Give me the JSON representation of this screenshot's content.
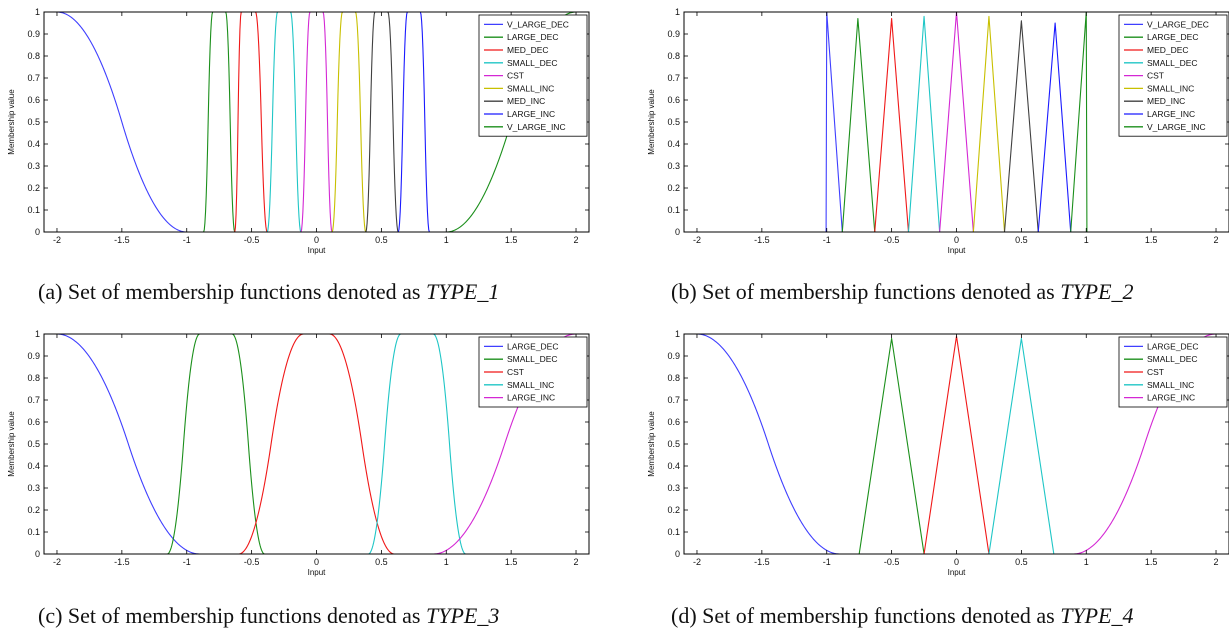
{
  "chart_data": [
    {
      "id": "TYPE_1",
      "type": "line",
      "xlabel": "Input",
      "ylabel": "Membership value",
      "xlim": [
        -2.1,
        2.1
      ],
      "ylim": [
        0,
        1
      ],
      "x_ticks": [
        "-2",
        "-1.5",
        "-1",
        "-0.5",
        "0",
        "0.5",
        "1",
        "1.5",
        "2"
      ],
      "y_ticks": [
        "0",
        "0.1",
        "0.2",
        "0.3",
        "0.4",
        "0.5",
        "0.6",
        "0.7",
        "0.8",
        "0.9",
        "1"
      ],
      "legend_position": "top-right",
      "grid": false,
      "series": [
        {
          "name": "V_LARGE_DEC",
          "color": "#3f3fff",
          "shape": "zmf",
          "params": [
            -2.0,
            -1.0
          ]
        },
        {
          "name": "LARGE_DEC",
          "color": "#1b8f1b",
          "shape": "pimf",
          "params": [
            -0.87,
            -0.8,
            -0.7,
            -0.63
          ]
        },
        {
          "name": "MED_DEC",
          "color": "#f01818",
          "shape": "pimf",
          "params": [
            -0.63,
            -0.58,
            -0.47,
            -0.38
          ]
        },
        {
          "name": "SMALL_DEC",
          "color": "#1fc6c6",
          "shape": "pimf",
          "params": [
            -0.38,
            -0.3,
            -0.2,
            -0.12
          ]
        },
        {
          "name": "CST",
          "color": "#d428d4",
          "shape": "pimf",
          "params": [
            -0.12,
            -0.05,
            0.05,
            0.12
          ]
        },
        {
          "name": "SMALL_INC",
          "color": "#c8c000",
          "shape": "pimf",
          "params": [
            0.12,
            0.2,
            0.3,
            0.38
          ]
        },
        {
          "name": "MED_INC",
          "color": "#404040",
          "shape": "pimf",
          "params": [
            0.38,
            0.45,
            0.55,
            0.63
          ]
        },
        {
          "name": "LARGE_INC",
          "color": "#1a1aff",
          "shape": "pimf",
          "params": [
            0.63,
            0.7,
            0.8,
            0.87
          ]
        },
        {
          "name": "V_LARGE_INC",
          "color": "#1b8f1b",
          "shape": "smf",
          "params": [
            1.0,
            2.0
          ]
        }
      ]
    },
    {
      "id": "TYPE_2",
      "type": "line",
      "xlabel": "Input",
      "ylabel": "Membership value",
      "xlim": [
        -2.1,
        2.1
      ],
      "ylim": [
        0,
        1
      ],
      "x_ticks": [
        "-2",
        "-1.5",
        "-1",
        "-0.5",
        "0",
        "0.5",
        "1",
        "1.5",
        "2"
      ],
      "y_ticks": [
        "0",
        "0.1",
        "0.2",
        "0.3",
        "0.4",
        "0.5",
        "0.6",
        "0.7",
        "0.8",
        "0.9",
        "1"
      ],
      "legend_position": "top-right",
      "grid": false,
      "series": [
        {
          "name": "V_LARGE_DEC",
          "color": "#3f3fff",
          "shape": "tri",
          "params": [
            -1.0,
            -1.0,
            -0.88
          ]
        },
        {
          "name": "LARGE_DEC",
          "color": "#1b8f1b",
          "shape": "tri",
          "params": [
            -0.88,
            -0.76,
            -0.63
          ],
          "peak": 0.97
        },
        {
          "name": "MED_DEC",
          "color": "#f01818",
          "shape": "tri",
          "params": [
            -0.63,
            -0.5,
            -0.37
          ],
          "peak": 0.97
        },
        {
          "name": "SMALL_DEC",
          "color": "#1fc6c6",
          "shape": "tri",
          "params": [
            -0.37,
            -0.25,
            -0.13
          ],
          "peak": 0.98
        },
        {
          "name": "CST",
          "color": "#d428d4",
          "shape": "tri",
          "params": [
            -0.13,
            0.0,
            0.13
          ],
          "peak": 1.0
        },
        {
          "name": "SMALL_INC",
          "color": "#c8c000",
          "shape": "tri",
          "params": [
            0.13,
            0.25,
            0.37
          ],
          "peak": 0.98
        },
        {
          "name": "MED_INC",
          "color": "#404040",
          "shape": "tri",
          "params": [
            0.37,
            0.5,
            0.63
          ],
          "peak": 0.96
        },
        {
          "name": "LARGE_INC",
          "color": "#1a1aff",
          "shape": "tri",
          "params": [
            0.63,
            0.76,
            0.88
          ],
          "peak": 0.95
        },
        {
          "name": "V_LARGE_INC",
          "color": "#1b8f1b",
          "shape": "tri",
          "params": [
            0.88,
            1.0,
            1.0
          ]
        }
      ]
    },
    {
      "id": "TYPE_3",
      "type": "line",
      "xlabel": "Input",
      "ylabel": "Membership value",
      "xlim": [
        -2.1,
        2.1
      ],
      "ylim": [
        0,
        1
      ],
      "x_ticks": [
        "-2",
        "-1.5",
        "-1",
        "-0.5",
        "0",
        "0.5",
        "1",
        "1.5",
        "2"
      ],
      "y_ticks": [
        "0",
        "0.1",
        "0.2",
        "0.3",
        "0.4",
        "0.5",
        "0.6",
        "0.7",
        "0.8",
        "0.9",
        "1"
      ],
      "legend_position": "top-right",
      "grid": false,
      "series": [
        {
          "name": "LARGE_DEC",
          "color": "#3f3fff",
          "shape": "zmf",
          "params": [
            -2.0,
            -0.9
          ]
        },
        {
          "name": "SMALL_DEC",
          "color": "#1b8f1b",
          "shape": "pimf",
          "params": [
            -1.15,
            -0.9,
            -0.65,
            -0.4
          ]
        },
        {
          "name": "CST",
          "color": "#f01818",
          "shape": "pimf",
          "params": [
            -0.6,
            -0.1,
            0.1,
            0.6
          ]
        },
        {
          "name": "SMALL_INC",
          "color": "#1fc6c6",
          "shape": "pimf",
          "params": [
            0.4,
            0.65,
            0.9,
            1.15
          ]
        },
        {
          "name": "LARGE_INC",
          "color": "#d428d4",
          "shape": "smf",
          "params": [
            0.9,
            2.0
          ]
        }
      ]
    },
    {
      "id": "TYPE_4",
      "type": "line",
      "xlabel": "Input",
      "ylabel": "Membership value",
      "xlim": [
        -2.1,
        2.1
      ],
      "ylim": [
        0,
        1
      ],
      "x_ticks": [
        "-2",
        "-1.5",
        "-1",
        "-0.5",
        "0",
        "0.5",
        "1",
        "1.5",
        "2"
      ],
      "y_ticks": [
        "0",
        "0.1",
        "0.2",
        "0.3",
        "0.4",
        "0.5",
        "0.6",
        "0.7",
        "0.8",
        "0.9",
        "1"
      ],
      "legend_position": "top-right",
      "grid": false,
      "series": [
        {
          "name": "LARGE_DEC",
          "color": "#3f3fff",
          "shape": "zmf",
          "params": [
            -2.0,
            -0.9
          ]
        },
        {
          "name": "SMALL_DEC",
          "color": "#1b8f1b",
          "shape": "tri",
          "params": [
            -0.75,
            -0.5,
            -0.25
          ],
          "peak": 0.98
        },
        {
          "name": "CST",
          "color": "#f01818",
          "shape": "tri",
          "params": [
            -0.25,
            0.0,
            0.25
          ],
          "peak": 0.99
        },
        {
          "name": "SMALL_INC",
          "color": "#1fc6c6",
          "shape": "tri",
          "params": [
            0.25,
            0.5,
            0.75
          ],
          "peak": 0.98
        },
        {
          "name": "LARGE_INC",
          "color": "#d428d4",
          "shape": "smf",
          "params": [
            0.9,
            2.0
          ]
        }
      ]
    }
  ],
  "captions": [
    {
      "prefix": "(a) Set of membership functions denoted as ",
      "type_name": "TYPE_1"
    },
    {
      "prefix": "(b) Set of membership functions denoted as ",
      "type_name": "TYPE_2"
    },
    {
      "prefix": "(c) Set of membership functions denoted as ",
      "type_name": "TYPE_3"
    },
    {
      "prefix": "(d) Set of membership functions denoted as ",
      "type_name": "TYPE_4"
    }
  ]
}
